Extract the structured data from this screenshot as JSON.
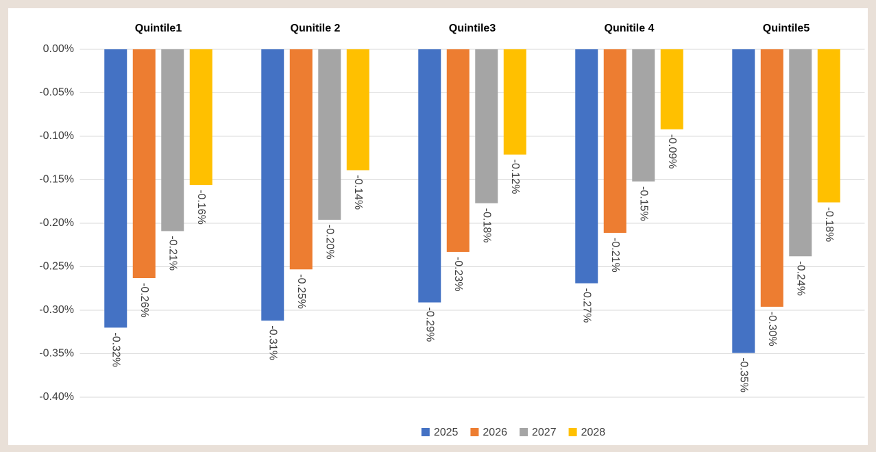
{
  "chart_data": {
    "type": "bar",
    "categories": [
      "Quintile1",
      "Qunitile 2",
      "Quintile3",
      "Qunitile 4",
      "Quintile5"
    ],
    "series": [
      {
        "name": "2025",
        "color": "#4472c4",
        "values": [
          -0.32,
          -0.312,
          -0.291,
          -0.269,
          -0.349
        ],
        "value_labels": [
          "-0.32%",
          "-0.31%",
          "-0.29%",
          "-0.27%",
          "-0.35%"
        ]
      },
      {
        "name": "2026",
        "color": "#ed7d31",
        "values": [
          -0.263,
          -0.253,
          -0.233,
          -0.211,
          -0.296
        ],
        "value_labels": [
          "-0.26%",
          "-0.25%",
          "-0.23%",
          "-0.21%",
          "-0.30%"
        ]
      },
      {
        "name": "2027",
        "color": "#a5a5a5",
        "values": [
          -0.209,
          -0.196,
          -0.177,
          -0.152,
          -0.238
        ],
        "value_labels": [
          "-0.21%",
          "-0.20%",
          "-0.18%",
          "-0.15%",
          "-0.24%"
        ]
      },
      {
        "name": "2028",
        "color": "#ffc000",
        "values": [
          -0.156,
          -0.139,
          -0.121,
          -0.092,
          -0.176
        ],
        "value_labels": [
          "-0.16%",
          "-0.14%",
          "-0.12%",
          "-0.09%",
          "-0.18%"
        ]
      }
    ],
    "ylim": [
      -0.4,
      0
    ],
    "yticks": [
      {
        "value": 0,
        "label": "0.00%"
      },
      {
        "value": -0.05,
        "label": "-0.05%"
      },
      {
        "value": -0.1,
        "label": "-0.10%"
      },
      {
        "value": -0.15,
        "label": "-0.15%"
      },
      {
        "value": -0.2,
        "label": "-0.20%"
      },
      {
        "value": -0.25,
        "label": "-0.25%"
      },
      {
        "value": -0.3,
        "label": "-0.30%"
      },
      {
        "value": -0.35,
        "label": "-0.35%"
      },
      {
        "value": -0.4,
        "label": "-0.40%"
      }
    ],
    "grid": true,
    "legend": "bottom"
  }
}
